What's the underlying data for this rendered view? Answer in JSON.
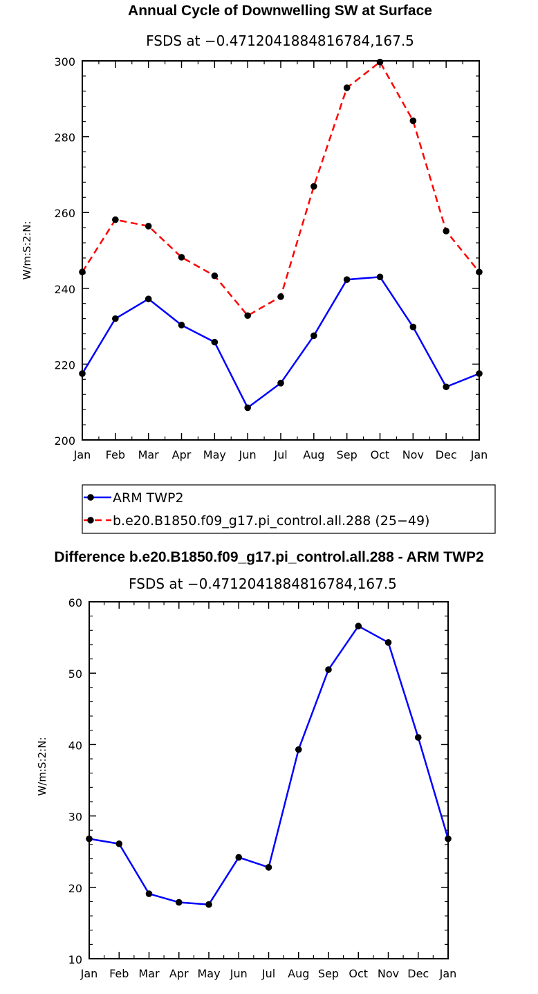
{
  "chart_data": [
    {
      "type": "line",
      "title": "Annual Cycle of Downwelling SW at Surface",
      "subtitle": "FSDS at −0.4712041884816784,167.5",
      "ylabel": "W/m:S:2:N:",
      "xlabel": "",
      "categories": [
        "Jan",
        "Feb",
        "Mar",
        "Apr",
        "May",
        "Jun",
        "Jul",
        "Aug",
        "Sep",
        "Oct",
        "Nov",
        "Dec",
        "Jan"
      ],
      "ylim": [
        200,
        300
      ],
      "yticks": [
        200,
        220,
        240,
        260,
        280,
        300
      ],
      "series": [
        {
          "name": "ARM TWP2",
          "color": "#0000ff",
          "dash": "solid",
          "values": [
            217.5,
            232.0,
            237.2,
            230.3,
            225.8,
            208.5,
            215.0,
            227.5,
            242.3,
            243.0,
            229.8,
            214.0,
            217.5
          ]
        },
        {
          "name": "b.e20.B1850.f09_g17.pi_control.all.288 (25−49)",
          "color": "#ff0000",
          "dash": "dashed",
          "values": [
            244.3,
            258.1,
            256.4,
            248.2,
            243.3,
            232.8,
            237.8,
            266.9,
            292.9,
            299.7,
            284.2,
            255.1,
            244.3
          ]
        }
      ],
      "legend": [
        "ARM TWP2",
        "b.e20.B1850.f09_g17.pi_control.all.288 (25−49)"
      ]
    },
    {
      "type": "line",
      "title": "Difference b.e20.B1850.f09_g17.pi_control.all.288 - ARM TWP2",
      "subtitle": "FSDS at −0.4712041884816784,167.5",
      "ylabel": "W/m:S:2:N:",
      "xlabel": "",
      "categories": [
        "Jan",
        "Feb",
        "Mar",
        "Apr",
        "May",
        "Jun",
        "Jul",
        "Aug",
        "Sep",
        "Oct",
        "Nov",
        "Dec",
        "Jan"
      ],
      "ylim": [
        10,
        60
      ],
      "yticks": [
        10,
        20,
        30,
        40,
        50,
        60
      ],
      "series": [
        {
          "name": "Difference",
          "color": "#0000ff",
          "dash": "solid",
          "values": [
            26.8,
            26.1,
            19.1,
            17.9,
            17.6,
            24.2,
            22.8,
            39.3,
            50.5,
            56.6,
            54.3,
            41.0,
            26.8
          ]
        }
      ]
    }
  ]
}
